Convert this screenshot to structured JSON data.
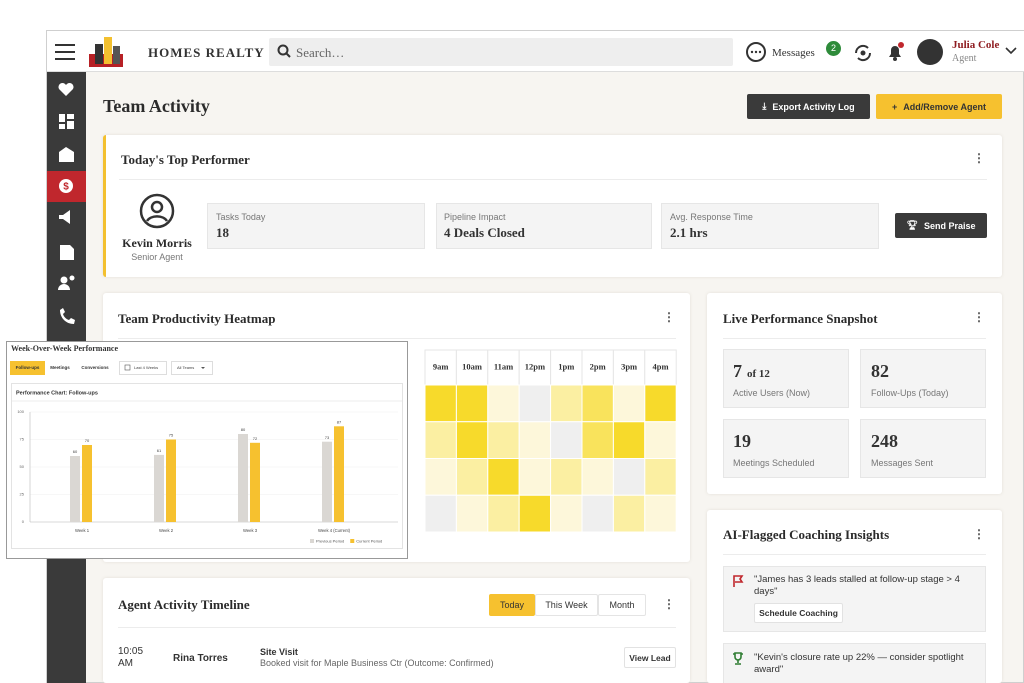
{
  "header": {
    "brand": "HOMES REALTY",
    "search_placeholder": "Search…",
    "messages": "Messages",
    "message_count": 2,
    "user_name": "Julia Cole",
    "user_role": "Agent"
  },
  "page": {
    "title": "Team Activity",
    "export_button": "Export Activity Log",
    "add_button": "Add/Remove Agent"
  },
  "top_performer": {
    "title": "Today's Top Performer",
    "name": "Kevin Morris",
    "role": "Senior Agent",
    "stats": [
      {
        "label": "Tasks Today",
        "value": "18"
      },
      {
        "label": "Pipeline Impact",
        "value": "4 Deals Closed"
      },
      {
        "label": "Avg. Response Time",
        "value": "2.1 hrs"
      }
    ],
    "button": "Send Praise"
  },
  "heatmap": {
    "title": "Team Productivity Heatmap",
    "columns": [
      "9am",
      "10am",
      "11am",
      "12pm",
      "1pm",
      "2pm",
      "3pm",
      "4pm"
    ],
    "levels": [
      [
        4,
        4,
        1,
        0,
        2,
        3,
        1,
        4
      ],
      [
        2,
        4,
        2,
        1,
        0,
        3,
        4,
        1
      ],
      [
        1,
        2,
        4,
        1,
        2,
        1,
        0,
        2
      ],
      [
        0,
        1,
        2,
        4,
        1,
        0,
        2,
        1
      ]
    ],
    "palette": [
      "#efefef",
      "#fdf7da",
      "#fbefa2",
      "#f9e35c",
      "#f7da2b"
    ]
  },
  "snapshot": {
    "title": "Live Performance Snapshot",
    "stats": [
      {
        "value": 7,
        "suffix": "of 12",
        "label": "Active Users (Now)"
      },
      {
        "value": 82,
        "label": "Follow-Ups (Today)"
      },
      {
        "value": 19,
        "label": "Meetings Scheduled"
      },
      {
        "value": 248,
        "label": "Messages Sent"
      }
    ]
  },
  "insights": {
    "title": "AI-Flagged Coaching Insights",
    "items": [
      {
        "text": "\"James has 3 leads stalled at follow-up stage > 4 days\"",
        "action": "Schedule Coaching"
      },
      {
        "text": "\"Kevin's closure rate up 22% — consider spotlight award\""
      }
    ]
  },
  "timeline": {
    "title": "Agent Activity Timeline",
    "tabs": [
      "Today",
      "This Week",
      "Month"
    ],
    "rows": [
      {
        "time": "10:05 AM",
        "agent": "Rina Torres",
        "activity": "Site Visit",
        "detail": "Booked visit for Maple Business Ctr (Outcome: Confirmed)",
        "action": "View Lead"
      }
    ]
  },
  "chart_window": {
    "title": "Week-Over-Week Performance",
    "tabs": [
      "Follow-ups",
      "Meetings",
      "Conversions"
    ],
    "filters": [
      "Last 4 Weeks",
      "All Teams"
    ]
  },
  "chart_data": {
    "type": "bar",
    "title": "Performance Chart: Follow-ups",
    "categories": [
      "Week 1",
      "Week 2",
      "Week 3",
      "Week 4 (Current)"
    ],
    "series": [
      {
        "name": "Previous Period",
        "color": "#dad7d3",
        "values": [
          60,
          61,
          80,
          73
        ]
      },
      {
        "name": "Current Period",
        "color": "#f6c12f",
        "values": [
          70,
          75,
          72,
          87
        ]
      }
    ],
    "ylim": [
      0,
      100
    ],
    "yticks": [
      0,
      25,
      50,
      75,
      100
    ],
    "grid": true,
    "legend": "bottom-right"
  }
}
